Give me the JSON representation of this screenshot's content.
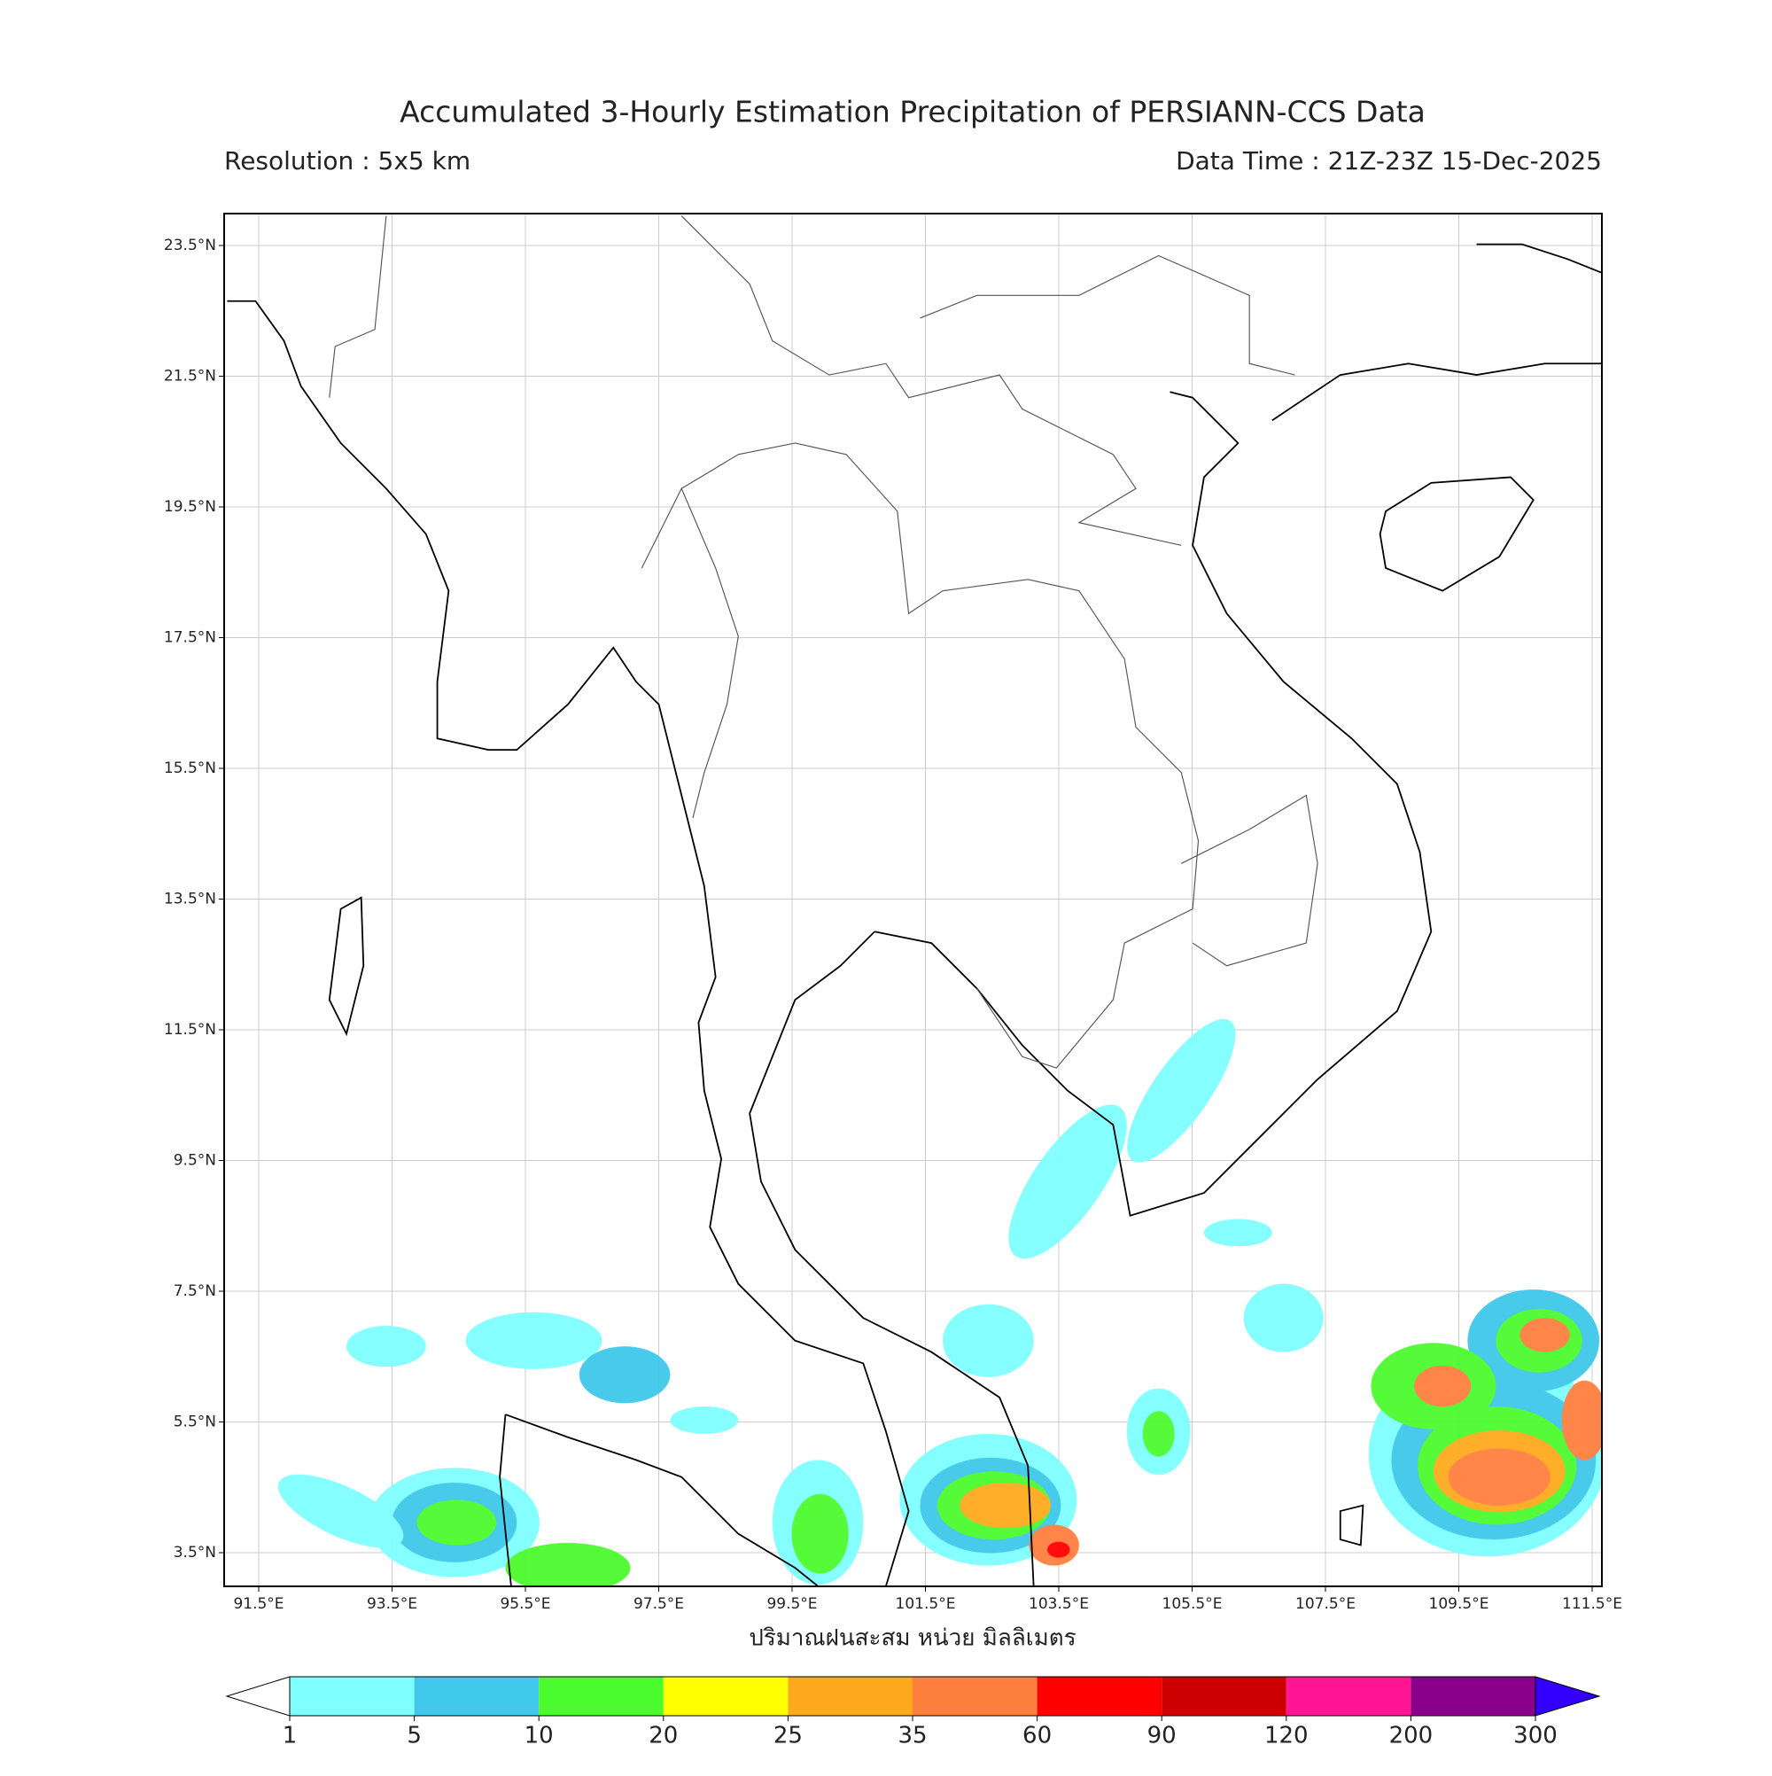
{
  "header": {
    "title": "Accumulated 3-Hourly Estimation Precipitation of PERSIANN-CCS Data",
    "resolution": "Resolution : 5x5 km",
    "data_time": "Data Time : 21Z-23Z 15-Dec-2025"
  },
  "map": {
    "grid": true,
    "lon_ticks": [
      {
        "value": 91.5,
        "label": "91.5°E"
      },
      {
        "value": 93.5,
        "label": "93.5°E"
      },
      {
        "value": 95.5,
        "label": "95.5°E"
      },
      {
        "value": 97.5,
        "label": "97.5°E"
      },
      {
        "value": 99.5,
        "label": "99.5°E"
      },
      {
        "value": 101.5,
        "label": "101.5°E"
      },
      {
        "value": 103.5,
        "label": "103.5°E"
      },
      {
        "value": 105.5,
        "label": "105.5°E"
      },
      {
        "value": 107.5,
        "label": "107.5°E"
      },
      {
        "value": 109.5,
        "label": "109.5°E"
      },
      {
        "value": 111.5,
        "label": "111.5°E"
      }
    ],
    "lat_ticks": [
      {
        "value": 23.5,
        "label": "23.5°N"
      },
      {
        "value": 21.5,
        "label": "21.5°N"
      },
      {
        "value": 19.5,
        "label": "19.5°N"
      },
      {
        "value": 17.5,
        "label": "17.5°N"
      },
      {
        "value": 15.5,
        "label": "15.5°N"
      },
      {
        "value": 13.5,
        "label": "13.5°N"
      },
      {
        "value": 11.5,
        "label": "11.5°N"
      },
      {
        "value": 9.5,
        "label": "9.5°N"
      },
      {
        "value": 7.5,
        "label": "7.5°N"
      },
      {
        "value": 5.5,
        "label": "5.5°N"
      },
      {
        "value": 3.5,
        "label": "3.5°N"
      }
    ]
  },
  "colorbar": {
    "label": "ปริมาณฝนสะสม หน่วย มิลลิเมตร",
    "levels": [
      1,
      5,
      10,
      20,
      25,
      35,
      60,
      90,
      120,
      200,
      300
    ],
    "colors": [
      "#7fffff",
      "#3fc8ea",
      "#4cfb2e",
      "#ffff00",
      "#ffaa1e",
      "#ff7f3f",
      "#ff0000",
      "#cc0000",
      "#ff1493",
      "#8b008b"
    ],
    "over_color": "#3300ff"
  }
}
